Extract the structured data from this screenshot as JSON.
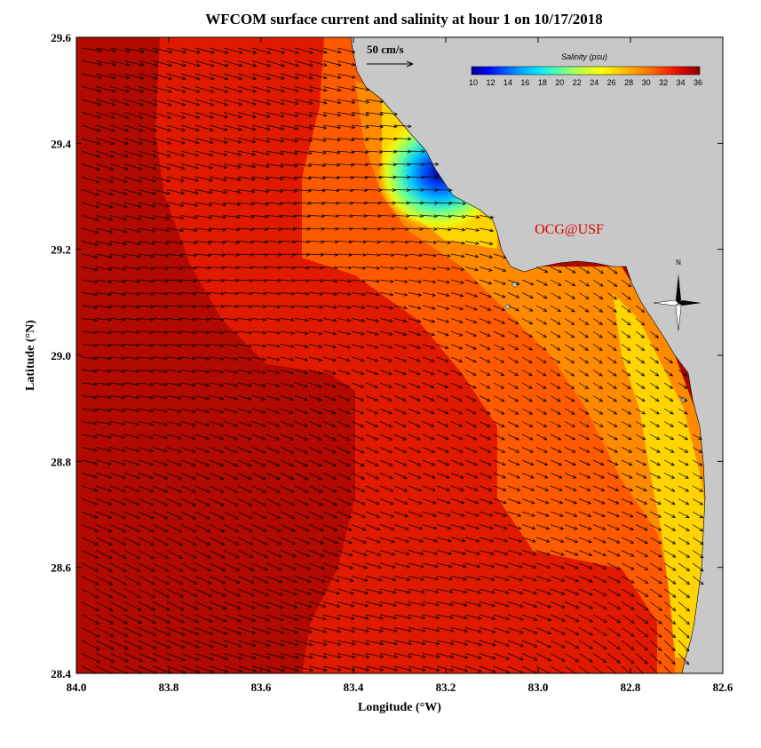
{
  "title": "WFCOM surface current and salinity at hour 1 on 10/17/2018",
  "xlabel": "Longitude (°W)",
  "ylabel": "Latitude (°N)",
  "credit": "OCG@USF",
  "north_label": "N",
  "vector_scale": {
    "label": "50 cm/s",
    "speed_cm_s": 50
  },
  "colorbar": {
    "title": "Salinity (psu)",
    "min": 10,
    "max": 36,
    "ticks": [
      "10",
      "12",
      "14",
      "16",
      "18",
      "20",
      "22",
      "24",
      "26",
      "28",
      "30",
      "32",
      "34",
      "36"
    ],
    "colors": [
      "#00008f",
      "#0000ff",
      "#0050ff",
      "#00a0ff",
      "#00e5ff",
      "#40ffc0",
      "#90ff70",
      "#d0ff30",
      "#ffff00",
      "#ffd000",
      "#ffa000",
      "#ff6a00",
      "#ff2a00",
      "#d00000",
      "#8b0000"
    ]
  },
  "x_ticks": [
    "84.0",
    "83.8",
    "83.6",
    "83.4",
    "83.2",
    "83.0",
    "82.8",
    "82.6"
  ],
  "y_ticks": [
    "29.6",
    "29.4",
    "29.2",
    "29.0",
    "28.8",
    "28.6",
    "28.4"
  ],
  "colors": {
    "land": "#c8c8c8",
    "water_dark": "#a00000",
    "water_red": "#e41a00",
    "water_orange": "#ff6000",
    "water_yellow": "#ffd800",
    "credit": "#dd0000"
  },
  "chart_data": {
    "type": "map",
    "extent": {
      "lon_w": [
        84.0,
        82.6
      ],
      "lat_n": [
        28.4,
        29.6
      ]
    },
    "salinity_min_zone": {
      "lon": 83.2,
      "lat": 29.33,
      "salinity": 10
    },
    "grid_on": false,
    "colorbar_placement": "top-right"
  }
}
